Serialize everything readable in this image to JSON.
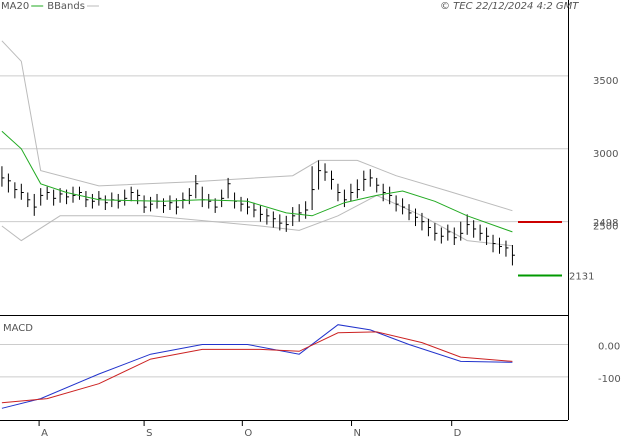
{
  "chart_data": [
    {
      "type": "ohlc",
      "legend": [
        {
          "name": "MA20",
          "color": "#22aa22"
        },
        {
          "name": "BBands",
          "color": "#bbbbbb"
        }
      ],
      "copyright": "© TEC 22/12/2024 4:2 GMT",
      "close": [
        2800,
        2780,
        2720,
        2700,
        2650,
        2600,
        2680,
        2700,
        2660,
        2690,
        2670,
        2680,
        2700,
        2650,
        2640,
        2660,
        2630,
        2650,
        2640,
        2660,
        2700,
        2680,
        2600,
        2620,
        2640,
        2610,
        2630,
        2600,
        2650,
        2680,
        2760,
        2650,
        2640,
        2600,
        2660,
        2760,
        2640,
        2620,
        2600,
        2580,
        2550,
        2540,
        2520,
        2490,
        2480,
        2540,
        2560,
        2580,
        2720,
        2850,
        2840,
        2790,
        2700,
        2650,
        2700,
        2720,
        2790,
        2800,
        2750,
        2700,
        2680,
        2620,
        2600,
        2560,
        2530,
        2500,
        2460,
        2420,
        2400,
        2430,
        2390,
        2420,
        2480,
        2450,
        2420,
        2400,
        2350,
        2330,
        2320,
        2270
      ],
      "high": [
        2880,
        2830,
        2770,
        2760,
        2700,
        2690,
        2730,
        2740,
        2720,
        2730,
        2720,
        2740,
        2740,
        2710,
        2690,
        2710,
        2680,
        2700,
        2690,
        2720,
        2740,
        2720,
        2680,
        2670,
        2690,
        2660,
        2680,
        2660,
        2700,
        2730,
        2820,
        2740,
        2690,
        2660,
        2720,
        2800,
        2700,
        2670,
        2660,
        2630,
        2610,
        2590,
        2570,
        2550,
        2540,
        2600,
        2620,
        2640,
        2880,
        2920,
        2900,
        2850,
        2760,
        2720,
        2760,
        2790,
        2850,
        2860,
        2800,
        2760,
        2740,
        2680,
        2660,
        2620,
        2590,
        2560,
        2520,
        2490,
        2460,
        2480,
        2460,
        2500,
        2550,
        2510,
        2480,
        2460,
        2410,
        2390,
        2370,
        2340
      ],
      "low": [
        2740,
        2700,
        2660,
        2650,
        2600,
        2540,
        2610,
        2650,
        2610,
        2630,
        2620,
        2630,
        2650,
        2600,
        2590,
        2610,
        2580,
        2600,
        2590,
        2610,
        2640,
        2620,
        2560,
        2570,
        2590,
        2560,
        2580,
        2550,
        2590,
        2620,
        2660,
        2600,
        2590,
        2560,
        2600,
        2660,
        2590,
        2570,
        2550,
        2530,
        2500,
        2480,
        2460,
        2440,
        2430,
        2470,
        2500,
        2520,
        2580,
        2720,
        2780,
        2720,
        2640,
        2600,
        2640,
        2660,
        2710,
        2740,
        2700,
        2640,
        2620,
        2570,
        2550,
        2510,
        2470,
        2440,
        2400,
        2370,
        2350,
        2370,
        2340,
        2370,
        2410,
        2390,
        2370,
        2340,
        2290,
        2280,
        2260,
        2200
      ],
      "ma20": {
        "name": "MA20",
        "color": "#22aa22",
        "x": [
          0,
          3,
          6,
          10,
          15,
          25,
          31,
          38,
          44,
          48,
          53,
          58,
          62,
          67,
          72,
          79
        ],
        "values": [
          3120,
          3000,
          2760,
          2700,
          2650,
          2640,
          2650,
          2640,
          2560,
          2540,
          2630,
          2680,
          2710,
          2640,
          2540,
          2430
        ]
      },
      "bb_upper": {
        "color": "#bbbbbb",
        "x": [
          0,
          3,
          6,
          15,
          30,
          45,
          49,
          55,
          61,
          69,
          79
        ],
        "values": [
          3740,
          3600,
          2850,
          2745,
          2775,
          2815,
          2920,
          2920,
          2815,
          2710,
          2575
        ]
      },
      "bb_lower": {
        "color": "#bbbbbb",
        "x": [
          0,
          3,
          9,
          23,
          40,
          46,
          52,
          58,
          65,
          72,
          79
        ],
        "values": [
          2470,
          2370,
          2540,
          2540,
          2470,
          2440,
          2540,
          2680,
          2540,
          2370,
          2335
        ]
      },
      "markers": [
        {
          "value": 2498,
          "label": "2498",
          "color": "#cc0000"
        },
        {
          "value": 2131,
          "label": "2131",
          "color": "#009900"
        }
      ],
      "ylim": [
        1860,
        4020
      ],
      "yticks": [
        2500,
        3000,
        3500
      ],
      "xlim": [
        -0.3,
        87.6
      ],
      "xticks": [
        {
          "value": 5.75,
          "label": "A"
        },
        {
          "value": 22,
          "label": "S"
        },
        {
          "value": 37.2,
          "label": "O"
        },
        {
          "value": 54.1,
          "label": "N"
        },
        {
          "value": 69.6,
          "label": "D"
        }
      ]
    },
    {
      "type": "macd",
      "title": "MACD",
      "series": [
        {
          "color": "#2233cc",
          "x": [
            0,
            6,
            15,
            23,
            31,
            38,
            46,
            52,
            57,
            63,
            71,
            79
          ],
          "values": [
            -197,
            -167,
            -91,
            -30,
            0,
            0,
            -30,
            61,
            45,
            0,
            -52,
            -55
          ]
        },
        {
          "color": "#cc2222",
          "x": [
            0,
            7,
            15,
            23,
            31,
            40,
            46,
            52,
            58,
            65,
            71,
            79
          ],
          "values": [
            -180,
            -167,
            -121,
            -45,
            -15,
            -15,
            -21,
            36,
            39,
            6,
            -39,
            -52
          ]
        }
      ],
      "ylim": [
        -233,
        88
      ],
      "yticks": [
        {
          "value": 0,
          "label": "0.00"
        },
        {
          "value": -100,
          "label": "-100"
        }
      ]
    }
  ]
}
